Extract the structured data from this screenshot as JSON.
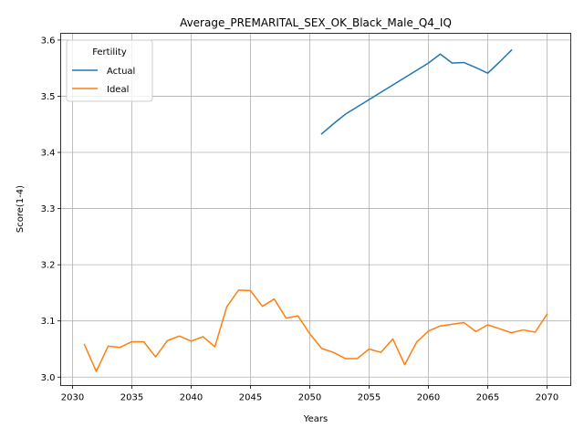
{
  "chart_data": {
    "type": "line",
    "title": "Average_PREMARITAL_SEX_OK_Black_Male_Q4_IQ",
    "xlabel": "Years",
    "ylabel": "Score(1-4)",
    "xlim": [
      2029,
      2072
    ],
    "ylim": [
      2.985,
      3.612
    ],
    "xticks": [
      2030,
      2035,
      2040,
      2045,
      2050,
      2055,
      2060,
      2065,
      2070
    ],
    "yticks": [
      3.0,
      3.1,
      3.2,
      3.3,
      3.4,
      3.5,
      3.6
    ],
    "ytick_labels": [
      "3.0",
      "3.1",
      "3.2",
      "3.3",
      "3.4",
      "3.5",
      "3.6"
    ],
    "grid": true,
    "legend": {
      "title": "Fertility",
      "placement": "upper-left"
    },
    "series": [
      {
        "name": "Actual",
        "color": "#1f77b4",
        "x": [
          2051,
          2052,
          2053,
          2054,
          2055,
          2056,
          2057,
          2058,
          2059,
          2060,
          2061,
          2062,
          2063,
          2064,
          2065,
          2066,
          2067
        ],
        "y": [
          3.433,
          3.451,
          3.468,
          3.481,
          3.494,
          3.507,
          3.52,
          3.533,
          3.546,
          3.559,
          3.575,
          3.559,
          3.56,
          3.551,
          3.541,
          3.561,
          3.582
        ]
      },
      {
        "name": "Ideal",
        "color": "#ff7f0e",
        "x": [
          2031,
          2032,
          2033,
          2034,
          2035,
          2036,
          2037,
          2038,
          2039,
          2040,
          2041,
          2042,
          2043,
          2044,
          2045,
          2046,
          2047,
          2048,
          2049,
          2050,
          2051,
          2052,
          2053,
          2054,
          2055,
          2056,
          2057,
          2058,
          2059,
          2060,
          2061,
          2062,
          2063,
          2064,
          2065,
          2066,
          2067,
          2068,
          2069,
          2070
        ],
        "y": [
          3.058,
          3.01,
          3.055,
          3.053,
          3.063,
          3.063,
          3.036,
          3.065,
          3.073,
          3.064,
          3.072,
          3.054,
          3.125,
          3.155,
          3.154,
          3.126,
          3.139,
          3.105,
          3.109,
          3.077,
          3.051,
          3.044,
          3.033,
          3.033,
          3.05,
          3.044,
          3.068,
          3.022,
          3.062,
          3.082,
          3.091,
          3.094,
          3.097,
          3.081,
          3.093,
          3.086,
          3.079,
          3.084,
          3.08,
          3.112
        ]
      }
    ]
  }
}
